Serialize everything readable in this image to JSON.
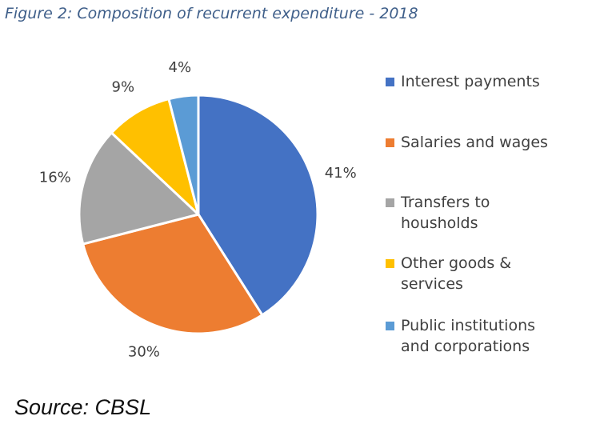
{
  "figure": {
    "title": "Figure 2: Composition of recurrent expenditure - 2018",
    "source": "Source: CBSL"
  },
  "chart_data": {
    "type": "pie",
    "title": "Figure 2: Composition of recurrent expenditure - 2018",
    "slices": [
      {
        "label": "Interest payments",
        "value": 41,
        "display": "41%",
        "color": "#4472c4"
      },
      {
        "label": "Salaries and wages",
        "value": 30,
        "display": "30%",
        "color": "#ed7d31"
      },
      {
        "label": "Transfers to housholds",
        "value": 16,
        "display": "16%",
        "color": "#a5a5a5"
      },
      {
        "label": "Other goods & services",
        "value": 9,
        "display": "9%",
        "color": "#ffc000"
      },
      {
        "label": "Public institutions and corporations",
        "value": 4,
        "display": "4%",
        "color": "#5b9bd5"
      }
    ],
    "legend_position": "right",
    "start_angle": "12 o'clock",
    "direction": "clockwise"
  },
  "legend": {
    "items": [
      {
        "label": "Interest payments",
        "color": "#4472c4"
      },
      {
        "label": "Salaries and wages",
        "color": "#ed7d31"
      },
      {
        "label": "Transfers to housholds",
        "color": "#a5a5a5"
      },
      {
        "label": "Other goods & services",
        "color": "#ffc000"
      },
      {
        "label": "Public institutions and corporations",
        "color": "#5b9bd5"
      }
    ]
  }
}
